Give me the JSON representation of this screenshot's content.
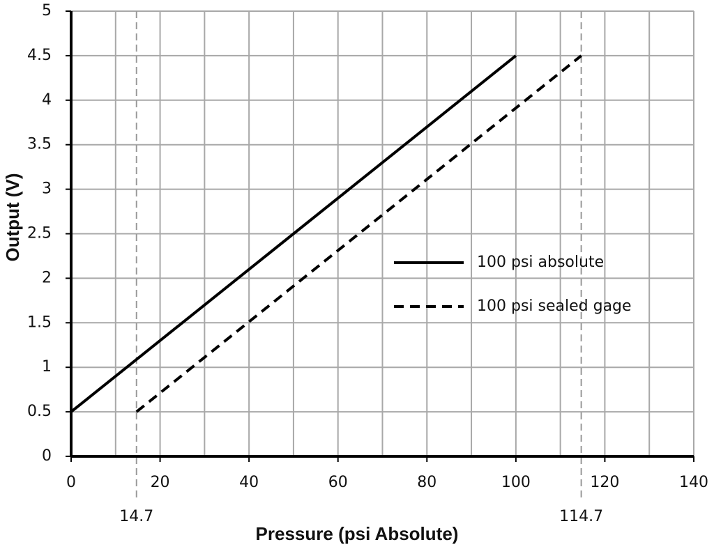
{
  "chart_data": {
    "type": "line",
    "x_label": "Pressure (psi Absolute)",
    "y_label": "Output (V)",
    "xlim": [
      0,
      140
    ],
    "ylim": [
      0,
      5
    ],
    "xticks": [
      0,
      20,
      40,
      60,
      80,
      100,
      120,
      140
    ],
    "xgrid": [
      0,
      10,
      20,
      30,
      40,
      50,
      60,
      70,
      80,
      90,
      100,
      110,
      120,
      130,
      140
    ],
    "yticks": [
      0,
      0.5,
      1,
      1.5,
      2,
      2.5,
      3,
      3.5,
      4,
      4.5,
      5
    ],
    "x_annotations": [
      14.7,
      114.7
    ],
    "grid": true,
    "series": [
      {
        "name": "100 psi absolute",
        "color": "#000000",
        "dash": "solid",
        "x": [
          0,
          100
        ],
        "values": [
          0.5,
          4.5
        ]
      },
      {
        "name": "100 psi sealed gage",
        "color": "#000000",
        "dash": "dashed",
        "x": [
          14.7,
          114.7
        ],
        "values": [
          0.5,
          4.5
        ]
      }
    ]
  }
}
